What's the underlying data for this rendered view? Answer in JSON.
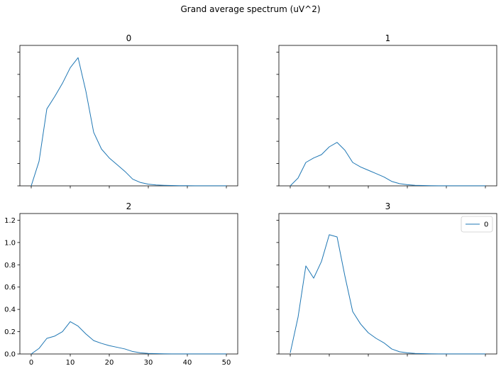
{
  "figure": {
    "suptitle": "Grand average spectrum (uV^2)"
  },
  "chart_data": [
    {
      "type": "line",
      "title": "0",
      "xlim": [
        0,
        50
      ],
      "ylim": [
        0,
        1.26
      ],
      "x_ticks": [
        "0",
        "10",
        "20",
        "30",
        "40",
        "50"
      ],
      "y_ticks": [
        "0.0",
        "0.2",
        "0.4",
        "0.6",
        "0.8",
        "1.0",
        "1.2"
      ],
      "show_x_ticklabels": false,
      "show_y_ticklabels": false,
      "series": [
        {
          "x": [
            0,
            2,
            4,
            6,
            8,
            10,
            12,
            14,
            16,
            18,
            20,
            22,
            24,
            26,
            28,
            30,
            32,
            34,
            36,
            38,
            40,
            42,
            44,
            46,
            48,
            50
          ],
          "y": [
            0,
            0.22,
            0.69,
            0.8,
            0.92,
            1.06,
            1.15,
            0.85,
            0.48,
            0.33,
            0.25,
            0.19,
            0.13,
            0.06,
            0.03,
            0.015,
            0.008,
            0.005,
            0.003,
            0.002,
            0.002,
            0.001,
            0.001,
            0.001,
            0.001,
            0.001
          ]
        }
      ],
      "legend": []
    },
    {
      "type": "line",
      "title": "1",
      "xlim": [
        0,
        50
      ],
      "ylim": [
        0,
        1.26
      ],
      "x_ticks": [
        "0",
        "10",
        "20",
        "30",
        "40",
        "50"
      ],
      "y_ticks": [
        "0.0",
        "0.2",
        "0.4",
        "0.6",
        "0.8",
        "1.0",
        "1.2"
      ],
      "show_x_ticklabels": false,
      "show_y_ticklabels": false,
      "series": [
        {
          "x": [
            0,
            2,
            4,
            6,
            8,
            10,
            12,
            14,
            16,
            18,
            20,
            22,
            24,
            26,
            28,
            30,
            32,
            34,
            36,
            38,
            40,
            42,
            44,
            46,
            48,
            50
          ],
          "y": [
            0,
            0.07,
            0.21,
            0.25,
            0.28,
            0.35,
            0.39,
            0.32,
            0.21,
            0.17,
            0.14,
            0.11,
            0.08,
            0.04,
            0.02,
            0.01,
            0.005,
            0.003,
            0.002,
            0.001,
            0.001,
            0.001,
            0.001,
            0.001,
            0.001,
            0.001
          ]
        }
      ],
      "legend": []
    },
    {
      "type": "line",
      "title": "2",
      "xlim": [
        0,
        50
      ],
      "ylim": [
        0,
        1.26
      ],
      "x_ticks": [
        "0",
        "10",
        "20",
        "30",
        "40",
        "50"
      ],
      "y_ticks": [
        "0.0",
        "0.2",
        "0.4",
        "0.6",
        "0.8",
        "1.0",
        "1.2"
      ],
      "show_x_ticklabels": true,
      "show_y_ticklabels": true,
      "series": [
        {
          "x": [
            0,
            2,
            4,
            6,
            8,
            10,
            12,
            14,
            16,
            18,
            20,
            22,
            24,
            26,
            28,
            30,
            32,
            34,
            36,
            38,
            40,
            42,
            44,
            46,
            48,
            50
          ],
          "y": [
            0,
            0.05,
            0.14,
            0.16,
            0.2,
            0.29,
            0.25,
            0.18,
            0.12,
            0.095,
            0.075,
            0.06,
            0.045,
            0.022,
            0.01,
            0.005,
            0.003,
            0.002,
            0.001,
            0.001,
            0.001,
            0.001,
            0.001,
            0.001,
            0.001,
            0.001
          ]
        }
      ],
      "legend": []
    },
    {
      "type": "line",
      "title": "3",
      "xlim": [
        0,
        50
      ],
      "ylim": [
        0,
        1.26
      ],
      "x_ticks": [
        "0",
        "10",
        "20",
        "30",
        "40",
        "50"
      ],
      "y_ticks": [
        "0.0",
        "0.2",
        "0.4",
        "0.6",
        "0.8",
        "1.0",
        "1.2"
      ],
      "show_x_ticklabels": false,
      "show_y_ticklabels": false,
      "series": [
        {
          "name": "0",
          "x": [
            0,
            2,
            4,
            6,
            8,
            10,
            12,
            14,
            16,
            18,
            20,
            22,
            24,
            26,
            28,
            30,
            32,
            34,
            36,
            38,
            40,
            42,
            44,
            46,
            48,
            50
          ],
          "y": [
            0.01,
            0.33,
            0.79,
            0.68,
            0.83,
            1.07,
            1.05,
            0.7,
            0.38,
            0.27,
            0.19,
            0.14,
            0.1,
            0.045,
            0.02,
            0.01,
            0.005,
            0.003,
            0.002,
            0.001,
            0.001,
            0.001,
            0.001,
            0.001,
            0.001,
            0.001
          ]
        }
      ],
      "legend": [
        "0"
      ]
    }
  ],
  "style": {
    "line_color": "#1f77b4",
    "axis_color": "#000000"
  }
}
